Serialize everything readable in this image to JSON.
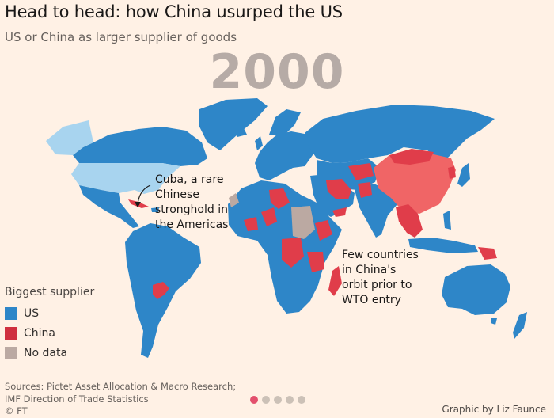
{
  "header": {
    "title": "Head to head: how China usurped the US",
    "subtitle": "US or China as larger supplier of goods"
  },
  "map": {
    "year": "2000",
    "colors": {
      "us": "#2e86c8",
      "china": "#e03d4a",
      "china_large": "#f06566",
      "no_data": "#bba9a2",
      "us_self": "#a8d4ef",
      "background": "#fff1e5"
    }
  },
  "annotations": {
    "cuba": [
      "Cuba, a rare",
      "Chinese",
      "stronghold in",
      "the Americas"
    ],
    "wto": [
      "Few countries",
      "in China's",
      "orbit prior to",
      "WTO entry"
    ]
  },
  "legend": {
    "title": "Biggest supplier",
    "items": [
      {
        "label": "US",
        "color": "#2e86c8"
      },
      {
        "label": "China",
        "color": "#cf2f3f"
      },
      {
        "label": "No data",
        "color": "#bba9a2"
      }
    ]
  },
  "footer": {
    "source_line1": "Sources: Pictet Asset Allocation & Macro Research;",
    "source_line2": "IMF Direction of Trade Statistics",
    "copyright": "© FT",
    "credit": "Graphic by Liz Faunce"
  },
  "pagination": {
    "total": 5,
    "active": 0
  }
}
